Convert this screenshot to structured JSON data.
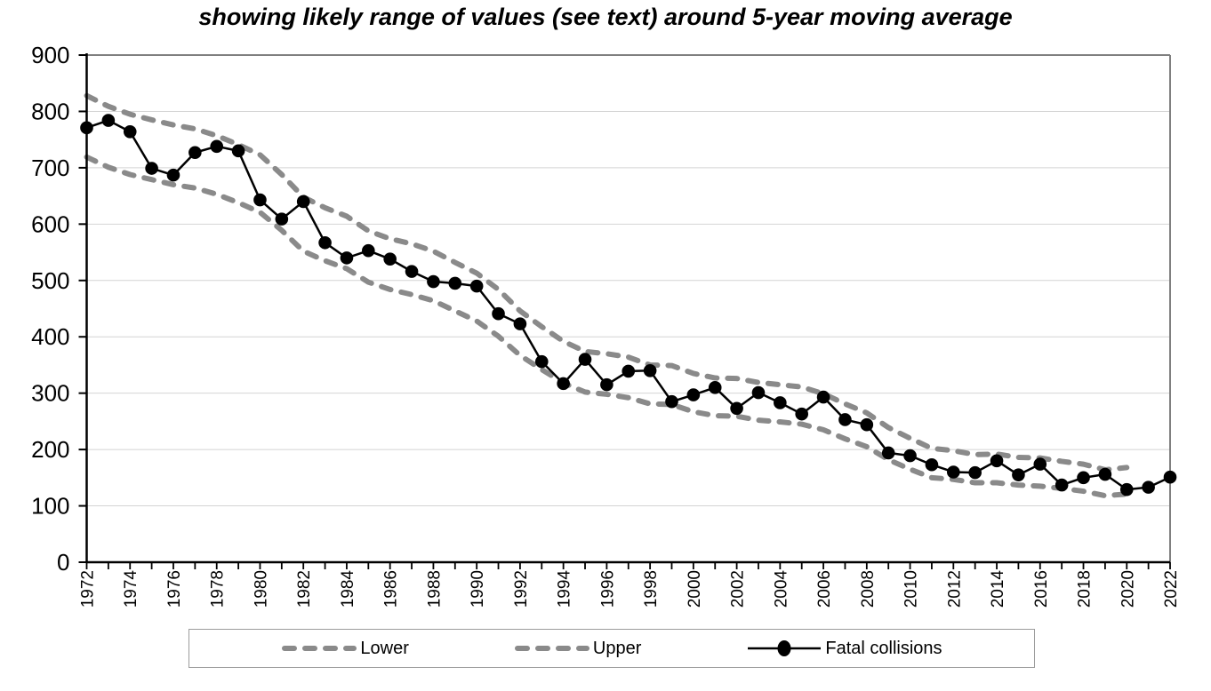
{
  "title": "showing likely range of values (see text) around 5-year moving average",
  "legend": {
    "items": [
      {
        "label": "Lower",
        "swatch": "gray-dashed-line"
      },
      {
        "label": "Upper",
        "swatch": "gray-dashed-line"
      },
      {
        "label": "Fatal collisions",
        "swatch": "black-line-circle-marker"
      }
    ]
  },
  "colors": {
    "band_dash": "#8a8a8a",
    "series_line": "#000000",
    "gridline": "#d4d4d4",
    "plot_border": "#7f7f7f",
    "axis": "#000000",
    "legend_border": "#9c9c9c",
    "text": "#000000"
  },
  "chart_data": {
    "type": "line",
    "title": "showing likely range of values (see text) around 5-year moving average",
    "xlabel": "",
    "ylabel": "",
    "xlim": [
      1972,
      2022
    ],
    "ylim": [
      0,
      900
    ],
    "grid": "horizontal",
    "legend_position": "bottom",
    "xtick_every_year": true,
    "xtick_labels": [
      "1972",
      "1974",
      "1976",
      "1978",
      "1980",
      "1982",
      "1984",
      "1986",
      "1988",
      "1990",
      "1992",
      "1994",
      "1996",
      "1998",
      "2000",
      "2002",
      "2004",
      "2006",
      "2008",
      "2010",
      "2012",
      "2014",
      "2016",
      "2018",
      "2020",
      "2022"
    ],
    "ytick_labels": [
      "0",
      "100",
      "200",
      "300",
      "400",
      "500",
      "600",
      "700",
      "800",
      "900"
    ],
    "series": [
      {
        "name": "Lower",
        "line_style": "dashed",
        "color": "#8a8a8a",
        "x_start": 1972,
        "x_end": 2020,
        "values": [
          719,
          701,
          688,
          679,
          670,
          664,
          653,
          638,
          621,
          589,
          552,
          535,
          521,
          497,
          484,
          475,
          464,
          446,
          428,
          401,
          367,
          342,
          318,
          302,
          298,
          292,
          281,
          280,
          267,
          260,
          259,
          252,
          249,
          245,
          235,
          219,
          205,
          182,
          165,
          150,
          147,
          141,
          141,
          137,
          135,
          131,
          126,
          118,
          121
        ]
      },
      {
        "name": "Upper",
        "line_style": "dashed",
        "color": "#8a8a8a",
        "x_start": 1972,
        "x_end": 2020,
        "values": [
          828,
          809,
          795,
          785,
          776,
          769,
          757,
          741,
          723,
          688,
          648,
          629,
          614,
          588,
          574,
          565,
          552,
          532,
          513,
          484,
          446,
          418,
          392,
          374,
          370,
          364,
          350,
          349,
          335,
          327,
          326,
          319,
          315,
          311,
          299,
          281,
          265,
          239,
          220,
          202,
          198,
          191,
          192,
          186,
          185,
          179,
          174,
          164,
          168
        ]
      },
      {
        "name": "Fatal collisions",
        "line_style": "solid",
        "marker": "circle",
        "color": "#000000",
        "x_start": 1972,
        "x_end": 2022,
        "values": [
          771,
          784,
          764,
          699,
          687,
          727,
          738,
          730,
          643,
          609,
          640,
          567,
          540,
          553,
          538,
          516,
          498,
          495,
          490,
          441,
          423,
          356,
          317,
          360,
          315,
          339,
          340,
          285,
          297,
          310,
          273,
          301,
          283,
          263,
          293,
          253,
          244,
          194,
          189,
          173,
          160,
          159,
          180,
          155,
          174,
          137,
          150,
          156,
          129,
          133,
          151
        ]
      }
    ]
  }
}
